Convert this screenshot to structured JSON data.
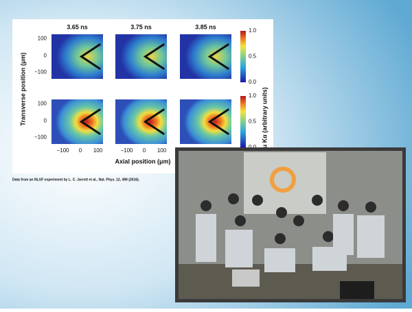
{
  "figure": {
    "panel_titles": [
      "3.65 ns",
      "3.75 ns",
      "3.85 ns"
    ],
    "y_label": "Transverse position (μm)",
    "x_label": "Axial position (μm)",
    "colorbar_label": "Cu Kα (arbitrary units)",
    "colorbar_ticks": [
      "1.0",
      "0.5",
      "0.0"
    ],
    "y_ticks": [
      "100",
      "0",
      "−100"
    ],
    "x_ticks": [
      "−100",
      "0",
      "100"
    ]
  },
  "caption": "Data from an NLUF experiment by L. C. Jarrott et al., Nat. Phys. 12, 499 (2016)."
}
